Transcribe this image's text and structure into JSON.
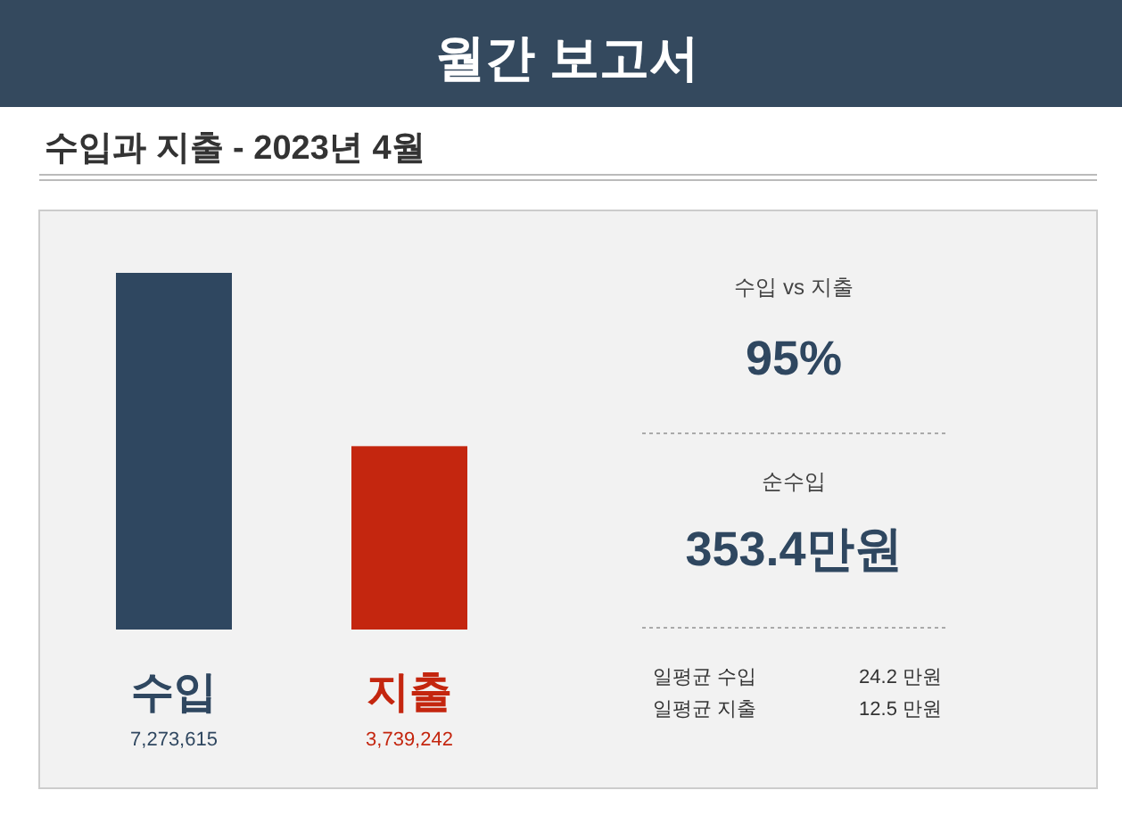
{
  "chart_data": [
    {
      "type": "bar",
      "title": "월간 보고서",
      "subtitle": "수입과 지출 - 2023년 4월",
      "categories": [
        "수입",
        "지출"
      ],
      "values": [
        7273615,
        3739242
      ],
      "colors": [
        "#2f4760",
        "#c4260f"
      ],
      "value_labels": [
        "7,273,615",
        "3,739,242"
      ]
    },
    {
      "type": "other",
      "annotations": [
        "수입 vs 지출",
        "95%",
        "순수입",
        "353.4만원",
        "일평균 수입",
        "24.2 만원",
        "일평균 지출",
        "12.5 만원"
      ]
    }
  ]
}
